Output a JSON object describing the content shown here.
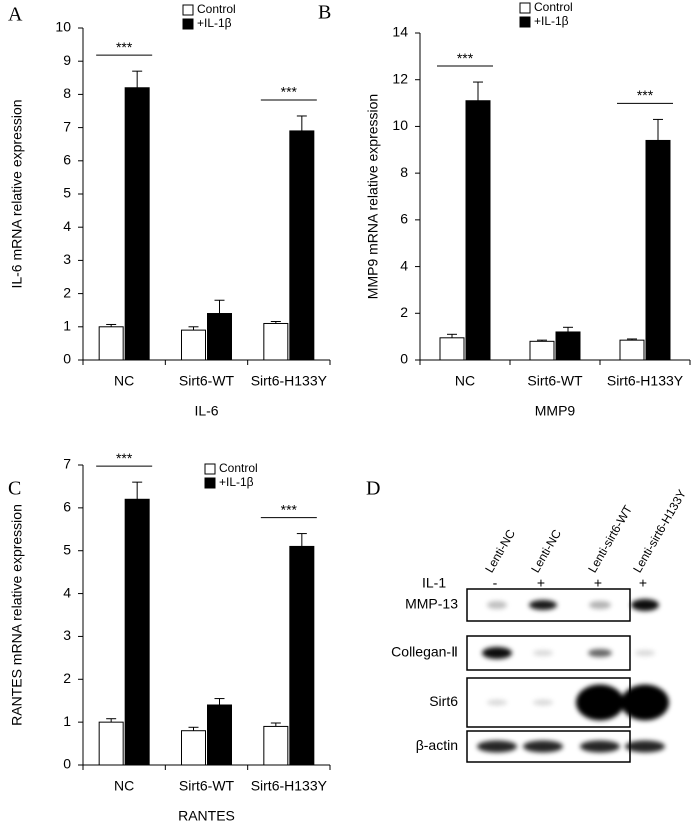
{
  "chart_data": [
    {
      "type": "bar",
      "panel": "A",
      "xlabel": "IL-6",
      "ylabel": "IL-6 mRNA relative expression",
      "categories": [
        "NC",
        "Sirt6-WT",
        "Sirt6-H133Y"
      ],
      "series": [
        {
          "name": "Control",
          "color": "#ffffff",
          "values": [
            1.0,
            0.9,
            1.1
          ],
          "errors": [
            0.07,
            0.1,
            0.06
          ]
        },
        {
          "name": "+IL-1β",
          "color": "#000000",
          "values": [
            8.2,
            1.4,
            6.9
          ],
          "errors": [
            0.5,
            0.4,
            0.45
          ]
        }
      ],
      "significance": [
        "***",
        null,
        "***"
      ],
      "ylim": [
        0,
        10
      ],
      "yticks": [
        0,
        1,
        2,
        3,
        4,
        5,
        6,
        7,
        8,
        9,
        10
      ]
    },
    {
      "type": "bar",
      "panel": "B",
      "xlabel": "MMP9",
      "ylabel": "MMP9 mRNA relative expression",
      "categories": [
        "NC",
        "Sirt6-WT",
        "Sirt6-H133Y"
      ],
      "series": [
        {
          "name": "Control",
          "color": "#ffffff",
          "values": [
            0.95,
            0.8,
            0.85
          ],
          "errors": [
            0.15,
            0.05,
            0.05
          ]
        },
        {
          "name": "+IL-1β",
          "color": "#000000",
          "values": [
            11.1,
            1.2,
            9.4
          ],
          "errors": [
            0.8,
            0.2,
            0.9
          ]
        }
      ],
      "significance": [
        "***",
        null,
        "***"
      ],
      "ylim": [
        0,
        14
      ],
      "yticks": [
        0,
        2,
        4,
        6,
        8,
        10,
        12,
        14
      ]
    },
    {
      "type": "bar",
      "panel": "C",
      "xlabel": "RANTES",
      "ylabel": "RANTES mRNA relative expression",
      "categories": [
        "NC",
        "Sirt6-WT",
        "Sirt6-H133Y"
      ],
      "series": [
        {
          "name": "Control",
          "color": "#ffffff",
          "values": [
            1.0,
            0.8,
            0.9
          ],
          "errors": [
            0.08,
            0.08,
            0.08
          ]
        },
        {
          "name": "+IL-1β",
          "color": "#000000",
          "values": [
            6.2,
            1.4,
            5.1
          ],
          "errors": [
            0.4,
            0.15,
            0.3
          ]
        }
      ],
      "significance": [
        "***",
        null,
        "***"
      ],
      "ylim": [
        0,
        7
      ],
      "yticks": [
        0,
        1,
        2,
        3,
        4,
        5,
        6,
        7
      ]
    }
  ],
  "blot": {
    "panel": "D",
    "headers": [
      "Lenti-NC",
      "Lenti-NC",
      "Lenti-sirt6-WT",
      "Lenti-sirt6-H133Y"
    ],
    "treatment_label": "IL-1",
    "treatment": [
      "-",
      "+",
      "+",
      "+"
    ],
    "rows": [
      "MMP-13",
      "Collegan-Ⅱ",
      "Sirt6",
      "β-actin"
    ]
  }
}
